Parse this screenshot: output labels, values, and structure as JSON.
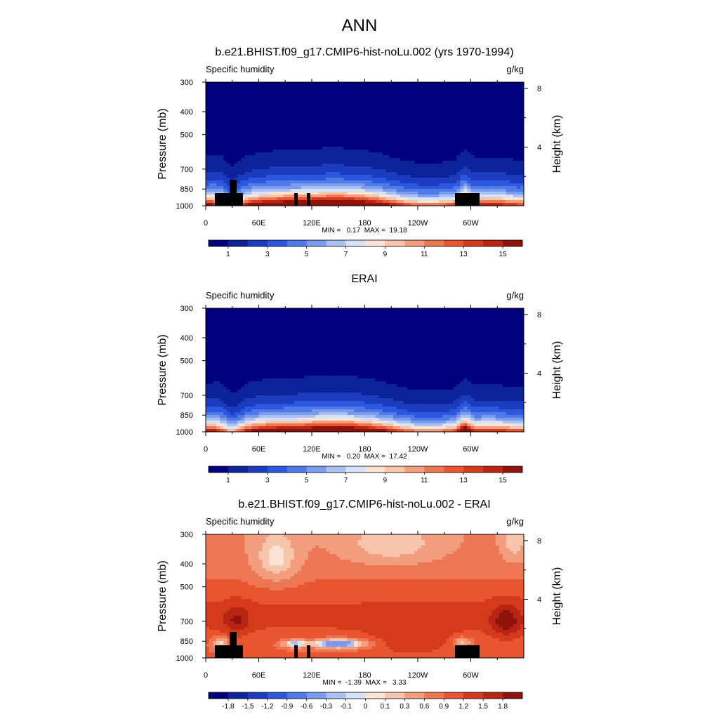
{
  "page_title": "ANN",
  "chart_data": [
    {
      "type": "heatmap",
      "title": "b.e21.BHIST.f09_g17.CMIP6-hist-noLu.002 (yrs 1970-1994)",
      "variable": "Specific humidity",
      "units": "g/kg",
      "xlabel": "",
      "ylabel": "Pressure (mb)",
      "ylabel_right": "Height (km)",
      "x_ticks": [
        "0",
        "60E",
        "120E",
        "180",
        "120W",
        "60W"
      ],
      "x_tick_lon": [
        0,
        60,
        120,
        180,
        240,
        300
      ],
      "y_ticks": [
        "300",
        "400",
        "500",
        "700",
        "850",
        "1000"
      ],
      "y_tick_p": [
        300,
        400,
        500,
        700,
        850,
        1000
      ],
      "height_ticks": [
        "8",
        "4"
      ],
      "height_tick_km": [
        8,
        4
      ],
      "stats": "MIN =   0.17  MAX =  19.18",
      "levels": [
        0,
        1,
        2,
        3,
        4,
        5,
        6,
        7,
        8,
        9,
        10,
        11,
        12,
        13,
        14,
        15,
        16
      ],
      "colorbar_labels": [
        "1",
        "3",
        "5",
        "7",
        "9",
        "11",
        "13",
        "15"
      ],
      "colorbar_label_levels": [
        1,
        3,
        5,
        7,
        9,
        11,
        13,
        15
      ],
      "palette": "blue-white-red",
      "masked_topography": true
    },
    {
      "type": "heatmap",
      "title": "ERAI",
      "variable": "Specific humidity",
      "units": "g/kg",
      "xlabel": "",
      "ylabel": "Pressure (mb)",
      "ylabel_right": "Height (km)",
      "x_ticks": [
        "0",
        "60E",
        "120E",
        "180",
        "120W",
        "60W"
      ],
      "x_tick_lon": [
        0,
        60,
        120,
        180,
        240,
        300
      ],
      "y_ticks": [
        "300",
        "400",
        "500",
        "700",
        "850",
        "1000"
      ],
      "y_tick_p": [
        300,
        400,
        500,
        700,
        850,
        1000
      ],
      "height_ticks": [
        "8",
        "4"
      ],
      "height_tick_km": [
        8,
        4
      ],
      "stats": "MIN =   0.20  MAX =  17.42",
      "levels": [
        0,
        1,
        2,
        3,
        4,
        5,
        6,
        7,
        8,
        9,
        10,
        11,
        12,
        13,
        14,
        15,
        16
      ],
      "colorbar_labels": [
        "1",
        "3",
        "5",
        "7",
        "9",
        "11",
        "13",
        "15"
      ],
      "colorbar_label_levels": [
        1,
        3,
        5,
        7,
        9,
        11,
        13,
        15
      ],
      "palette": "blue-white-red",
      "masked_topography": false
    },
    {
      "type": "heatmap",
      "title": "b.e21.BHIST.f09_g17.CMIP6-hist-noLu.002 - ERAI",
      "variable": "Specific humidity",
      "units": "g/kg",
      "xlabel": "",
      "ylabel": "Pressure (mb)",
      "ylabel_right": "Height (km)",
      "x_ticks": [
        "0",
        "60E",
        "120E",
        "180",
        "120W",
        "60W"
      ],
      "x_tick_lon": [
        0,
        60,
        120,
        180,
        240,
        300
      ],
      "y_ticks": [
        "300",
        "400",
        "500",
        "700",
        "850",
        "1000"
      ],
      "y_tick_p": [
        300,
        400,
        500,
        700,
        850,
        1000
      ],
      "height_ticks": [
        "8",
        "4"
      ],
      "height_tick_km": [
        8,
        4
      ],
      "stats": "MIN =  -1.39  MAX =   3.33",
      "levels": [
        -2.1,
        -1.8,
        -1.5,
        -1.2,
        -0.9,
        -0.6,
        -0.3,
        -0.1,
        0,
        0.1,
        0.3,
        0.6,
        0.9,
        1.2,
        1.5,
        1.8,
        2.1
      ],
      "colorbar_labels": [
        "-1.8",
        "-1.5",
        "-1.2",
        "-0.9",
        "-0.6",
        "-0.3",
        "-0.1",
        "0",
        "0.1",
        "0.3",
        "0.6",
        "0.9",
        "1.2",
        "1.5",
        "1.8"
      ],
      "colorbar_label_levels": [
        -1.8,
        -1.5,
        -1.2,
        -0.9,
        -0.6,
        -0.3,
        -0.1,
        0,
        0.1,
        0.3,
        0.6,
        0.9,
        1.2,
        1.5,
        1.8
      ],
      "palette": "blue-white-red",
      "masked_topography": true
    }
  ],
  "palette_colors": [
    "#00007f",
    "#0c2399",
    "#1b3cbf",
    "#2c58e0",
    "#4f7ae8",
    "#7b9cee",
    "#a9c1f4",
    "#d5e3fa",
    "#fbe4d6",
    "#f7c4ac",
    "#f39d7f",
    "#ee7753",
    "#e8552f",
    "#d53a1b",
    "#b82514",
    "#90120c"
  ]
}
